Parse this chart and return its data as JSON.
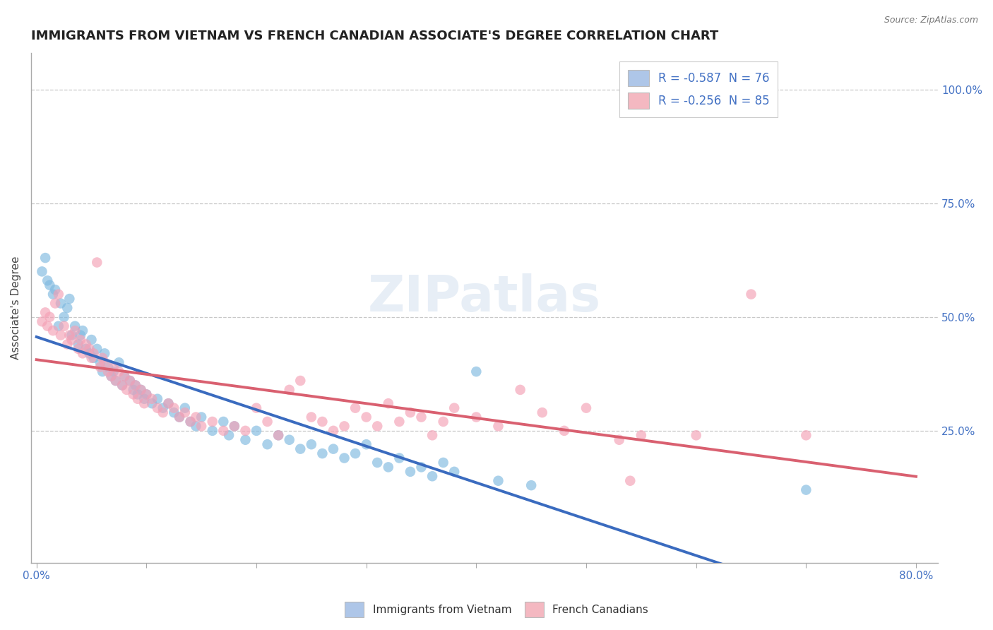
{
  "title": "IMMIGRANTS FROM VIETNAM VS FRENCH CANADIAN ASSOCIATE'S DEGREE CORRELATION CHART",
  "source_text": "Source: ZipAtlas.com",
  "ylabel": "Associate's Degree",
  "ylabel_right_ticks": [
    "100.0%",
    "75.0%",
    "50.0%",
    "25.0%"
  ],
  "ylabel_right_vals": [
    1.0,
    0.75,
    0.5,
    0.25
  ],
  "legend_entries": [
    {
      "label": "R = -0.587  N = 76",
      "color": "#aec6e8"
    },
    {
      "label": "R = -0.256  N = 85",
      "color": "#f4b8c1"
    }
  ],
  "legend_bottom": [
    "Immigrants from Vietnam",
    "French Canadians"
  ],
  "blue_color": "#7fb9e0",
  "pink_color": "#f4a0b5",
  "blue_scatter": [
    [
      0.005,
      0.6
    ],
    [
      0.008,
      0.63
    ],
    [
      0.01,
      0.58
    ],
    [
      0.012,
      0.57
    ],
    [
      0.015,
      0.55
    ],
    [
      0.017,
      0.56
    ],
    [
      0.02,
      0.48
    ],
    [
      0.022,
      0.53
    ],
    [
      0.025,
      0.5
    ],
    [
      0.028,
      0.52
    ],
    [
      0.03,
      0.54
    ],
    [
      0.032,
      0.46
    ],
    [
      0.035,
      0.48
    ],
    [
      0.038,
      0.44
    ],
    [
      0.04,
      0.46
    ],
    [
      0.042,
      0.47
    ],
    [
      0.045,
      0.43
    ],
    [
      0.048,
      0.42
    ],
    [
      0.05,
      0.45
    ],
    [
      0.052,
      0.41
    ],
    [
      0.055,
      0.43
    ],
    [
      0.058,
      0.4
    ],
    [
      0.06,
      0.38
    ],
    [
      0.062,
      0.42
    ],
    [
      0.065,
      0.39
    ],
    [
      0.068,
      0.37
    ],
    [
      0.07,
      0.38
    ],
    [
      0.072,
      0.36
    ],
    [
      0.075,
      0.4
    ],
    [
      0.078,
      0.35
    ],
    [
      0.08,
      0.37
    ],
    [
      0.085,
      0.36
    ],
    [
      0.088,
      0.34
    ],
    [
      0.09,
      0.35
    ],
    [
      0.092,
      0.33
    ],
    [
      0.095,
      0.34
    ],
    [
      0.098,
      0.32
    ],
    [
      0.1,
      0.33
    ],
    [
      0.105,
      0.31
    ],
    [
      0.11,
      0.32
    ],
    [
      0.115,
      0.3
    ],
    [
      0.12,
      0.31
    ],
    [
      0.125,
      0.29
    ],
    [
      0.13,
      0.28
    ],
    [
      0.135,
      0.3
    ],
    [
      0.14,
      0.27
    ],
    [
      0.145,
      0.26
    ],
    [
      0.15,
      0.28
    ],
    [
      0.16,
      0.25
    ],
    [
      0.17,
      0.27
    ],
    [
      0.175,
      0.24
    ],
    [
      0.18,
      0.26
    ],
    [
      0.19,
      0.23
    ],
    [
      0.2,
      0.25
    ],
    [
      0.21,
      0.22
    ],
    [
      0.22,
      0.24
    ],
    [
      0.23,
      0.23
    ],
    [
      0.24,
      0.21
    ],
    [
      0.25,
      0.22
    ],
    [
      0.26,
      0.2
    ],
    [
      0.27,
      0.21
    ],
    [
      0.28,
      0.19
    ],
    [
      0.29,
      0.2
    ],
    [
      0.3,
      0.22
    ],
    [
      0.31,
      0.18
    ],
    [
      0.32,
      0.17
    ],
    [
      0.33,
      0.19
    ],
    [
      0.34,
      0.16
    ],
    [
      0.35,
      0.17
    ],
    [
      0.36,
      0.15
    ],
    [
      0.37,
      0.18
    ],
    [
      0.38,
      0.16
    ],
    [
      0.4,
      0.38
    ],
    [
      0.42,
      0.14
    ],
    [
      0.45,
      0.13
    ],
    [
      0.7,
      0.12
    ]
  ],
  "pink_scatter": [
    [
      0.005,
      0.49
    ],
    [
      0.008,
      0.51
    ],
    [
      0.01,
      0.48
    ],
    [
      0.012,
      0.5
    ],
    [
      0.015,
      0.47
    ],
    [
      0.017,
      0.53
    ],
    [
      0.02,
      0.55
    ],
    [
      0.022,
      0.46
    ],
    [
      0.025,
      0.48
    ],
    [
      0.028,
      0.44
    ],
    [
      0.03,
      0.46
    ],
    [
      0.032,
      0.45
    ],
    [
      0.035,
      0.47
    ],
    [
      0.038,
      0.43
    ],
    [
      0.04,
      0.45
    ],
    [
      0.042,
      0.42
    ],
    [
      0.045,
      0.44
    ],
    [
      0.048,
      0.43
    ],
    [
      0.05,
      0.41
    ],
    [
      0.052,
      0.42
    ],
    [
      0.055,
      0.62
    ],
    [
      0.058,
      0.39
    ],
    [
      0.06,
      0.41
    ],
    [
      0.062,
      0.4
    ],
    [
      0.065,
      0.38
    ],
    [
      0.068,
      0.37
    ],
    [
      0.07,
      0.39
    ],
    [
      0.072,
      0.36
    ],
    [
      0.075,
      0.38
    ],
    [
      0.078,
      0.35
    ],
    [
      0.08,
      0.37
    ],
    [
      0.082,
      0.34
    ],
    [
      0.085,
      0.36
    ],
    [
      0.088,
      0.33
    ],
    [
      0.09,
      0.35
    ],
    [
      0.092,
      0.32
    ],
    [
      0.095,
      0.34
    ],
    [
      0.098,
      0.31
    ],
    [
      0.1,
      0.33
    ],
    [
      0.105,
      0.32
    ],
    [
      0.11,
      0.3
    ],
    [
      0.115,
      0.29
    ],
    [
      0.12,
      0.31
    ],
    [
      0.125,
      0.3
    ],
    [
      0.13,
      0.28
    ],
    [
      0.135,
      0.29
    ],
    [
      0.14,
      0.27
    ],
    [
      0.145,
      0.28
    ],
    [
      0.15,
      0.26
    ],
    [
      0.16,
      0.27
    ],
    [
      0.17,
      0.25
    ],
    [
      0.18,
      0.26
    ],
    [
      0.19,
      0.25
    ],
    [
      0.2,
      0.3
    ],
    [
      0.21,
      0.27
    ],
    [
      0.22,
      0.24
    ],
    [
      0.23,
      0.34
    ],
    [
      0.24,
      0.36
    ],
    [
      0.25,
      0.28
    ],
    [
      0.26,
      0.27
    ],
    [
      0.27,
      0.25
    ],
    [
      0.28,
      0.26
    ],
    [
      0.29,
      0.3
    ],
    [
      0.3,
      0.28
    ],
    [
      0.31,
      0.26
    ],
    [
      0.32,
      0.31
    ],
    [
      0.33,
      0.27
    ],
    [
      0.34,
      0.29
    ],
    [
      0.35,
      0.28
    ],
    [
      0.36,
      0.24
    ],
    [
      0.37,
      0.27
    ],
    [
      0.38,
      0.3
    ],
    [
      0.4,
      0.28
    ],
    [
      0.42,
      0.26
    ],
    [
      0.44,
      0.34
    ],
    [
      0.46,
      0.29
    ],
    [
      0.48,
      0.25
    ],
    [
      0.5,
      0.3
    ],
    [
      0.53,
      0.23
    ],
    [
      0.54,
      0.14
    ],
    [
      0.55,
      0.24
    ],
    [
      0.6,
      0.24
    ],
    [
      0.65,
      0.55
    ],
    [
      0.7,
      0.24
    ]
  ],
  "xlim": [
    -0.005,
    0.82
  ],
  "ylim": [
    -0.04,
    1.08
  ],
  "watermark_text": "ZIPatlas",
  "title_fontsize": 13,
  "axis_color": "#4472c4",
  "blue_trend": [
    0.0,
    0.8,
    0.47,
    -0.005
  ],
  "pink_trend": [
    0.0,
    0.8,
    0.46,
    0.2
  ]
}
